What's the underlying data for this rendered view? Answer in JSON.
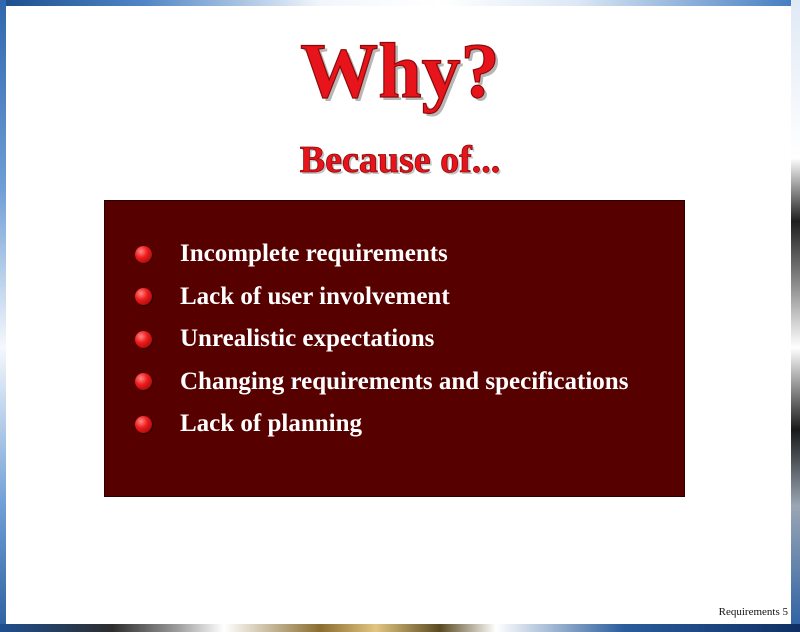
{
  "slide": {
    "title": "Why?",
    "subtitle": "Because of...",
    "reasons": [
      "Incomplete requirements",
      "Lack of user involvement",
      "Unrealistic expectations",
      "Changing requirements and specifications",
      "Lack of planning"
    ],
    "footer": "Requirements 5"
  },
  "colors": {
    "title": "#e8141c",
    "box_background": "#560000",
    "bullet": "#ee1c1c",
    "reason_text": "#ffffff"
  },
  "icons": {
    "bullet": "red-ball-bullet-icon"
  }
}
